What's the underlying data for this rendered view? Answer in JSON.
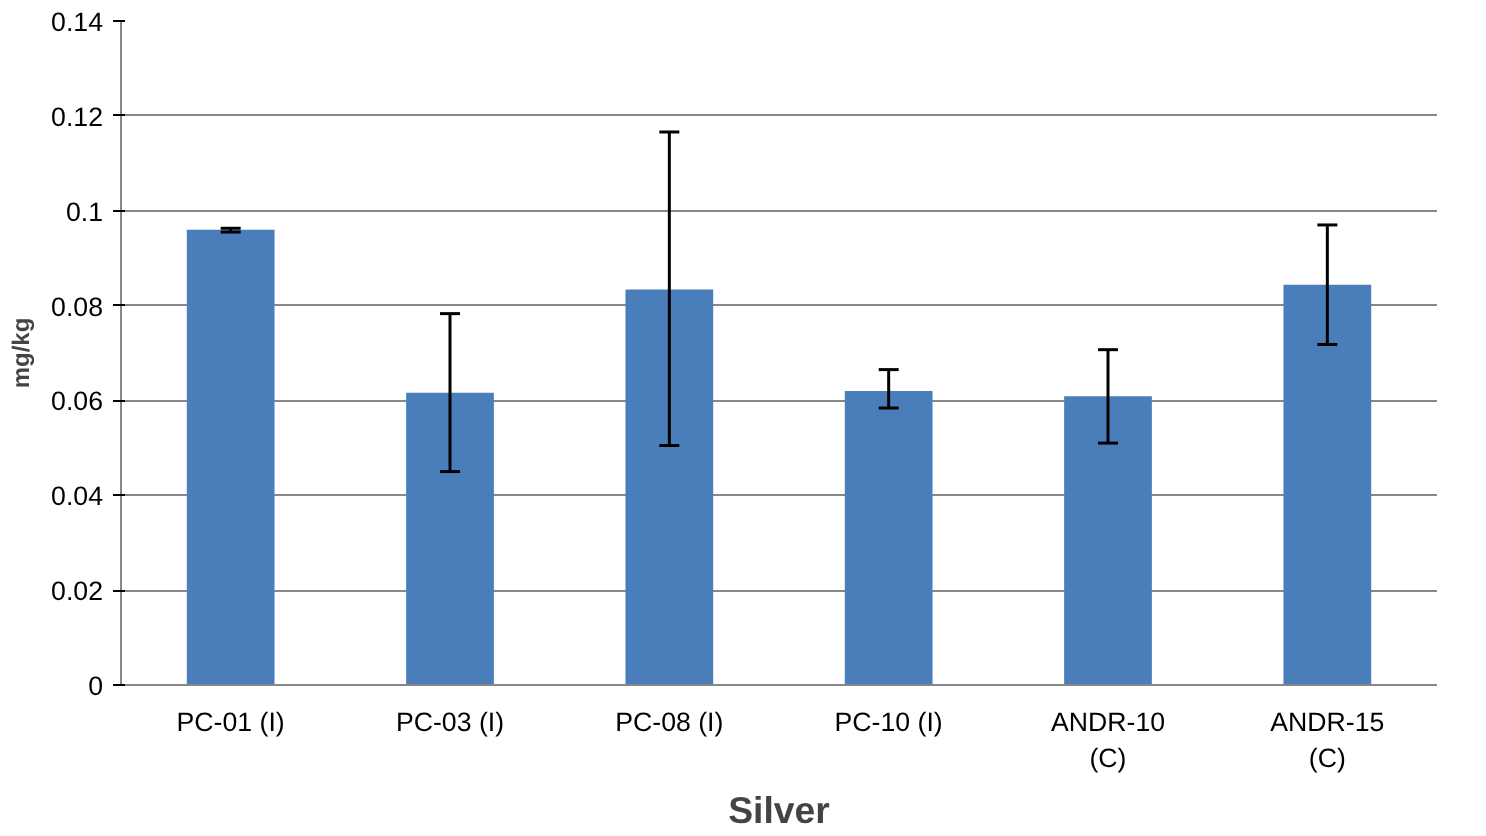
{
  "chart_data": {
    "type": "bar",
    "xlabel": "Silver",
    "ylabel": "mg/kg",
    "categories": [
      "PC-01 (I)",
      "PC-03 (I)",
      "PC-08 (I)",
      "PC-10 (I)",
      "ANDR-10\n(C)",
      "ANDR-15\n(C)"
    ],
    "values": [
      0.096,
      0.0616,
      0.0834,
      0.062,
      0.0609,
      0.0844
    ],
    "errors": [
      [
        0.0955,
        0.0963
      ],
      [
        0.045,
        0.0783
      ],
      [
        0.0505,
        0.1166
      ],
      [
        0.0584,
        0.0665
      ],
      [
        0.051,
        0.0707
      ],
      [
        0.0718,
        0.097
      ]
    ],
    "color": "#4a7ebb",
    "ylim": [
      0,
      0.14
    ],
    "yticks": [
      0,
      0.02,
      0.04,
      0.06,
      0.08,
      0.1,
      0.12,
      0.14
    ],
    "grid": "y"
  }
}
